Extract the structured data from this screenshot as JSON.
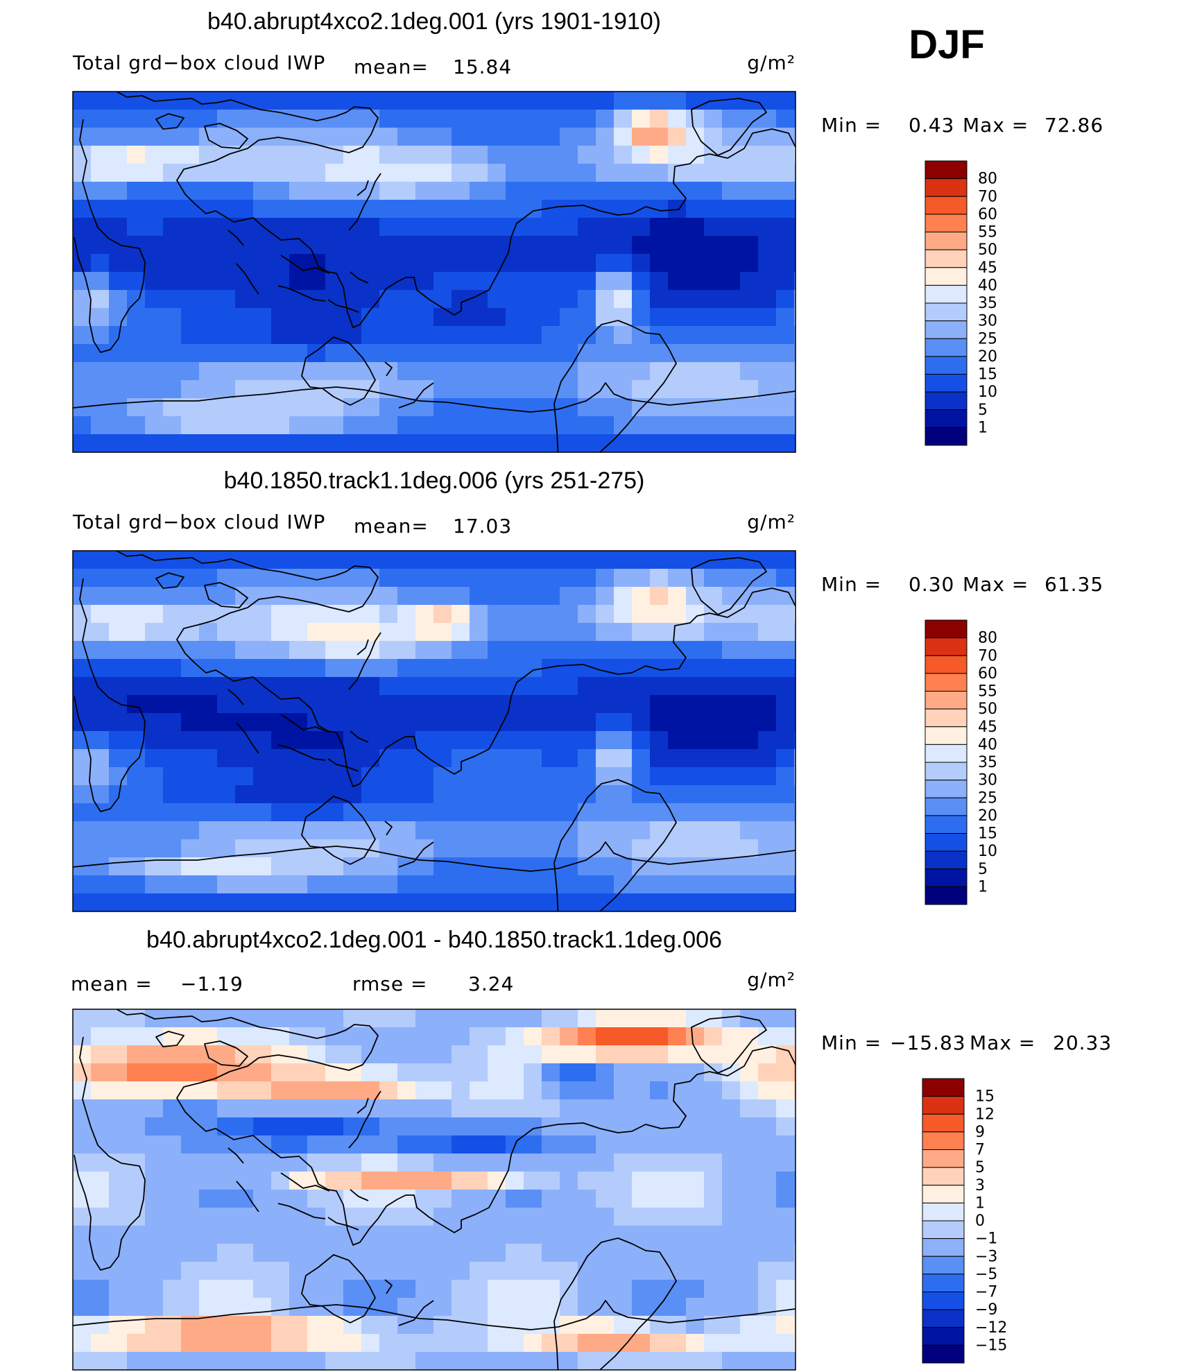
{
  "season": "DJF",
  "palette": {
    "blue_to_red": [
      "#00007f",
      "#0014a3",
      "#0a32c8",
      "#1450e6",
      "#2d6ef0",
      "#5a8ff5",
      "#8cb0fa",
      "#b4ccfc",
      "#dce9fe",
      "#fff0e1",
      "#ffd2b9",
      "#ffaa87",
      "#ff8050",
      "#f55a28",
      "#dc3214",
      "#b41e0a",
      "#8c0000"
    ],
    "land_outline": "#000000",
    "frame": "#000000"
  },
  "chart_data": [
    {
      "type": "heatmap",
      "title": "b40.abrupt4xco2.1deg.001 (yrs 1901-1910)",
      "variable": "Total grd−box cloud IWP",
      "mean_label": "mean=",
      "mean_value": "15.84",
      "units": "g/m²",
      "min_label": "Min =",
      "min_value": "0.43",
      "max_label": "Max =",
      "max_value": "72.86",
      "colorbar_levels": [
        "80",
        "70",
        "60",
        "55",
        "50",
        "45",
        "40",
        "35",
        "30",
        "25",
        "20",
        "15",
        "10",
        "5",
        "1"
      ],
      "lon_range": [
        30,
        390
      ],
      "lat_range": [
        -90,
        90
      ],
      "features": [
        {
          "lon": 75,
          "lat": 10,
          "v": 5,
          "sx": 90,
          "sy": 12
        },
        {
          "lon": 200,
          "lat": 10,
          "v": 5,
          "sx": 60,
          "sy": 8
        },
        {
          "lon": 150,
          "lat": -30,
          "v": 8,
          "sx": 40,
          "sy": 10
        },
        {
          "lon": 330,
          "lat": 15,
          "v": 4,
          "sx": 40,
          "sy": 15
        },
        {
          "lon": 230,
          "lat": -20,
          "v": 8,
          "sx": 25,
          "sy": 10
        },
        {
          "lon": 60,
          "lat": 55,
          "v": 42,
          "sx": 30,
          "sy": 8
        },
        {
          "lon": 195,
          "lat": 50,
          "v": 40,
          "sx": 30,
          "sy": 8
        },
        {
          "lon": 320,
          "lat": 70,
          "v": 55,
          "sx": 14,
          "sy": 8
        },
        {
          "lon": 40,
          "lat": -15,
          "v": 34,
          "sx": 8,
          "sy": 10
        },
        {
          "lon": 300,
          "lat": -15,
          "v": 40,
          "sx": 8,
          "sy": 12
        },
        {
          "lon": 90,
          "lat": 35,
          "v": 12,
          "sx": 20,
          "sy": 6
        },
        {
          "lon": 100,
          "lat": -72,
          "v": 44,
          "sx": 40,
          "sy": 4
        }
      ]
    },
    {
      "type": "heatmap",
      "title": "b40.1850.track1.1deg.006 (yrs 251-275)",
      "variable": "Total grd−box cloud IWP",
      "mean_label": "mean=",
      "mean_value": "17.03",
      "units": "g/m²",
      "min_label": "Min =",
      "min_value": "0.30",
      "max_label": "Max =",
      "max_value": "61.35",
      "colorbar_levels": [
        "80",
        "70",
        "60",
        "55",
        "50",
        "45",
        "40",
        "35",
        "30",
        "25",
        "20",
        "15",
        "10",
        "5",
        "1"
      ],
      "lon_range": [
        30,
        390
      ],
      "lat_range": [
        -90,
        90
      ],
      "features": [
        {
          "lon": 80,
          "lat": 10,
          "v": 4,
          "sx": 90,
          "sy": 12
        },
        {
          "lon": 200,
          "lat": 12,
          "v": 6,
          "sx": 60,
          "sy": 8
        },
        {
          "lon": 145,
          "lat": -30,
          "v": 7,
          "sx": 40,
          "sy": 10
        },
        {
          "lon": 330,
          "lat": 10,
          "v": 4,
          "sx": 40,
          "sy": 18
        },
        {
          "lon": 170,
          "lat": 48,
          "v": 42,
          "sx": 30,
          "sy": 9
        },
        {
          "lon": 215,
          "lat": 55,
          "v": 52,
          "sx": 10,
          "sy": 6
        },
        {
          "lon": 320,
          "lat": 65,
          "v": 48,
          "sx": 14,
          "sy": 8
        },
        {
          "lon": 55,
          "lat": 55,
          "v": 40,
          "sx": 25,
          "sy": 8
        },
        {
          "lon": 300,
          "lat": -15,
          "v": 34,
          "sx": 9,
          "sy": 12
        },
        {
          "lon": 40,
          "lat": -18,
          "v": 32,
          "sx": 8,
          "sy": 10
        },
        {
          "lon": 100,
          "lat": -70,
          "v": 40,
          "sx": 40,
          "sy": 4
        }
      ]
    },
    {
      "type": "heatmap",
      "title": "b40.abrupt4xco2.1deg.001 - b40.1850.track1.1deg.006",
      "mean_label": "mean =",
      "mean_value": "−1.19",
      "rmse_label": "rmse =",
      "rmse_value": "3.24",
      "units": "g/m²",
      "min_label": "Min =",
      "min_value": "−15.83",
      "max_label": "Max =",
      "max_value": "20.33",
      "colorbar_levels": [
        "15",
        "12",
        "9",
        "7",
        "5",
        "3",
        "1",
        "0",
        "−1",
        "−3",
        "−5",
        "−7",
        "−9",
        "−12",
        "−15"
      ],
      "lon_range": [
        30,
        390
      ],
      "lat_range": [
        -90,
        90
      ],
      "features": [
        {
          "lon": 80,
          "lat": 60,
          "v": 8,
          "sx": 50,
          "sy": 10
        },
        {
          "lon": 310,
          "lat": 75,
          "v": 12,
          "sx": 30,
          "sy": 6
        },
        {
          "lon": 160,
          "lat": 50,
          "v": 7,
          "sx": 30,
          "sy": 6
        },
        {
          "lon": 140,
          "lat": 30,
          "v": -9,
          "sx": 30,
          "sy": 6
        },
        {
          "lon": 230,
          "lat": 25,
          "v": -8,
          "sx": 35,
          "sy": 5
        },
        {
          "lon": 200,
          "lat": 5,
          "v": 6,
          "sx": 40,
          "sy": 4
        },
        {
          "lon": 105,
          "lat": -72,
          "v": 9,
          "sx": 50,
          "sy": 5
        },
        {
          "lon": 300,
          "lat": -75,
          "v": 7,
          "sx": 30,
          "sy": 5
        },
        {
          "lon": 280,
          "lat": 55,
          "v": -7,
          "sx": 12,
          "sy": 6
        },
        {
          "lon": 90,
          "lat": 35,
          "v": -5,
          "sx": 20,
          "sy": 8
        }
      ]
    }
  ]
}
